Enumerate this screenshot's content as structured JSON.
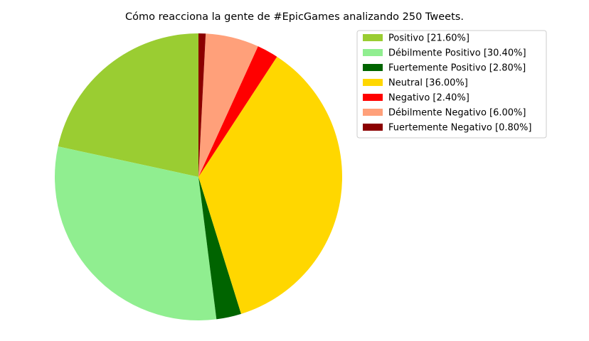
{
  "chart_data": {
    "type": "pie",
    "title": "Cómo reacciona la gente de #EpicGames analizando 250 Tweets.",
    "start_angle_deg": 90,
    "direction": "counterclockwise",
    "legend_position": "upper-right",
    "slices": [
      {
        "label": "Positivo [21.60%]",
        "value": 21.6,
        "color": "#9acd32"
      },
      {
        "label": "Débilmente Positivo [30.40%]",
        "value": 30.4,
        "color": "#90ee90"
      },
      {
        "label": "Fuertemente Positivo [2.80%]",
        "value": 2.8,
        "color": "#006400"
      },
      {
        "label": "Neutral [36.00%]",
        "value": 36.0,
        "color": "#ffd700"
      },
      {
        "label": "Negativo [2.40%]",
        "value": 2.4,
        "color": "#ff0000"
      },
      {
        "label": "Débilmente Negativo [6.00%]",
        "value": 6.0,
        "color": "#ffa07a"
      },
      {
        "label": "Fuertemente Negativo [0.80%]",
        "value": 0.8,
        "color": "#8b0000"
      }
    ]
  }
}
